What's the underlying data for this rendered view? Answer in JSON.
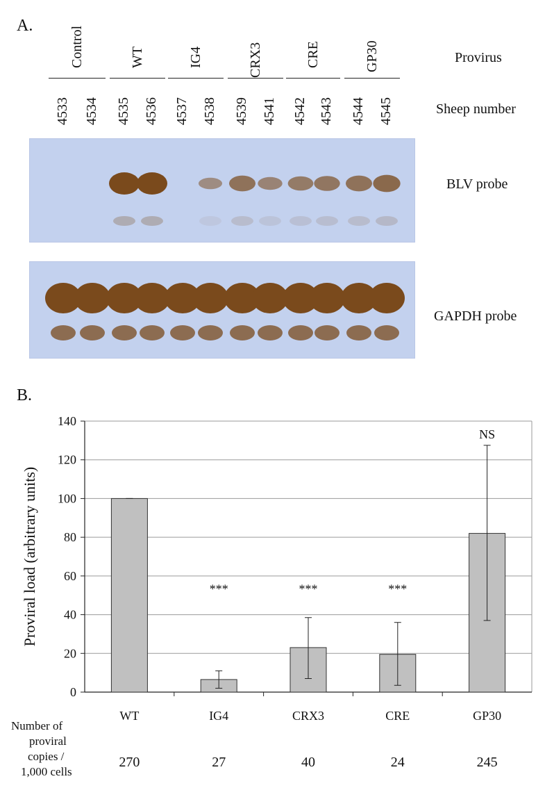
{
  "panel_a": {
    "label": "A.",
    "row_label_provirus": "Provirus",
    "row_label_sheep": "Sheep number",
    "probe_blv": "BLV probe",
    "probe_gapdh": "GAPDH probe",
    "groups": [
      "Control",
      "WT",
      "IG4",
      "CRX3",
      "CRE",
      "GP30"
    ],
    "sheep_numbers": [
      "4533",
      "4534",
      "4535",
      "4536",
      "4537",
      "4538",
      "4539",
      "4541",
      "4542",
      "4543",
      "4544",
      "4545"
    ],
    "blv_band_intensity": [
      0,
      0,
      1.0,
      1.0,
      0,
      0.25,
      0.55,
      0.35,
      0.45,
      0.5,
      0.55,
      0.65
    ],
    "gapdh_band_intensity": [
      1,
      1,
      1,
      1,
      1,
      1,
      1,
      1,
      1,
      1,
      1,
      1
    ],
    "blot_colors": {
      "background": "#c3d1ee",
      "band": "#7a4a1c"
    }
  },
  "panel_b": {
    "label": "B.",
    "footnote_lines": [
      "Number of",
      "proviral",
      "copies /",
      "1,000 cells"
    ],
    "copies": [
      "270",
      "27",
      "40",
      "24",
      "245"
    ]
  },
  "chart_data": {
    "type": "bar",
    "categories": [
      "WT",
      "IG4",
      "CRX3",
      "CRE",
      "GP30"
    ],
    "values": [
      100,
      6.5,
      23,
      19.5,
      82
    ],
    "error_low": [
      100,
      2,
      7,
      3.5,
      37
    ],
    "error_high": [
      100,
      11,
      38.5,
      36,
      127.5
    ],
    "significance": [
      "",
      "***",
      "***",
      "***",
      "NS"
    ],
    "ylabel": "Proviral load (arbitrary units)",
    "ylim": [
      0,
      140
    ],
    "yticks": [
      0,
      20,
      40,
      60,
      80,
      100,
      120,
      140
    ],
    "grid": true,
    "bar_color": "#c0c0c0",
    "bar_edge_color": "#333333"
  }
}
